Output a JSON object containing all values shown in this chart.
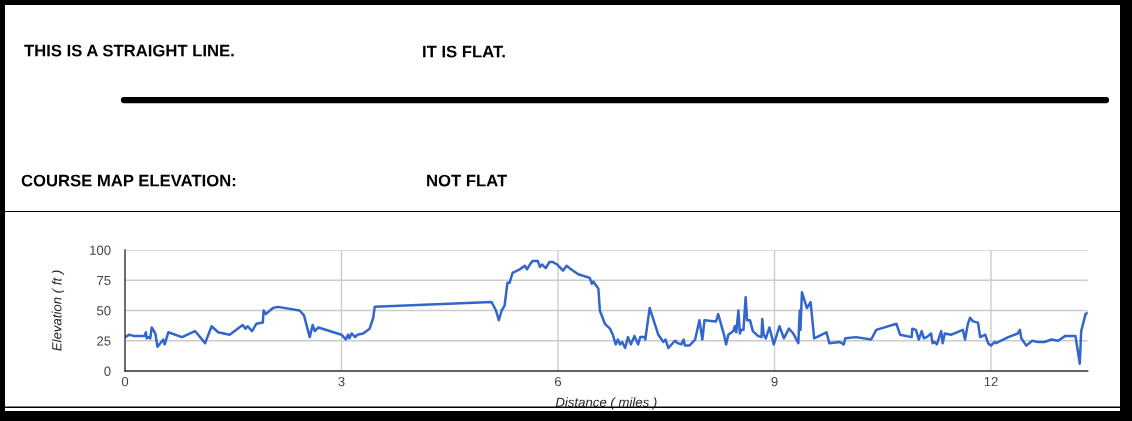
{
  "chart_data": [
    {
      "type": "other",
      "title": "THIS IS A STRAIGHT LINE.",
      "subtitle": "IT IS FLAT."
    },
    {
      "type": "line",
      "title": "COURSE MAP ELEVATION:",
      "subtitle": "NOT FLAT",
      "xlabel": "Distance ( miles )",
      "ylabel": "Elevation ( ft )",
      "x": [
        0.0,
        0.06,
        0.12,
        0.27,
        0.29,
        0.3,
        0.32,
        0.35,
        0.37,
        0.42,
        0.45,
        0.49,
        0.53,
        0.55,
        0.6,
        0.79,
        0.97,
        1.11,
        1.2,
        1.29,
        1.45,
        1.63,
        1.67,
        1.7,
        1.76,
        1.82,
        1.91,
        1.92,
        1.95,
        2.05,
        2.12,
        2.42,
        2.48,
        2.56,
        2.6,
        2.63,
        2.68,
        3.0,
        3.06,
        3.09,
        3.11,
        3.14,
        3.19,
        3.22,
        3.3,
        3.39,
        3.44,
        3.46,
        5.08,
        5.14,
        5.18,
        5.22,
        5.26,
        5.3,
        5.33,
        5.37,
        5.47,
        5.54,
        5.57,
        5.61,
        5.65,
        5.72,
        5.75,
        5.78,
        5.83,
        5.88,
        5.93,
        5.99,
        6.07,
        6.12,
        6.16,
        6.28,
        6.44,
        6.47,
        6.49,
        6.56,
        6.58,
        6.65,
        6.72,
        6.76,
        6.8,
        6.83,
        6.86,
        6.89,
        6.93,
        6.97,
        7.01,
        7.06,
        7.11,
        7.14,
        7.2,
        7.21,
        7.27,
        7.39,
        7.46,
        7.49,
        7.53,
        7.62,
        7.66,
        7.71,
        7.74,
        7.76,
        7.82,
        7.9,
        7.96,
        8.0,
        8.03,
        8.19,
        8.22,
        8.3,
        8.33,
        8.36,
        8.43,
        8.45,
        8.47,
        8.5,
        8.52,
        8.54,
        8.57,
        8.6,
        8.62,
        8.66,
        8.7,
        8.77,
        8.82,
        8.83,
        8.85,
        8.88,
        8.93,
        8.99,
        9.07,
        9.13,
        9.2,
        9.26,
        9.33,
        9.35,
        9.36,
        9.38,
        9.45,
        9.5,
        9.55,
        9.72,
        9.76,
        9.9,
        9.96,
        9.98,
        10.13,
        10.34,
        10.41,
        10.69,
        10.74,
        10.9,
        10.91,
        10.96,
        11.0,
        11.04,
        11.07,
        11.11,
        11.17,
        11.19,
        11.22,
        11.25,
        11.31,
        11.33,
        11.36,
        11.45,
        11.61,
        11.64,
        11.68,
        11.71,
        11.75,
        11.82,
        11.85,
        11.92,
        11.96,
        12.0,
        12.05,
        12.07,
        12.24,
        12.37,
        12.4,
        12.42,
        12.49,
        12.57,
        12.65,
        12.74,
        12.84,
        12.93,
        13.03,
        13.17,
        13.23,
        13.25,
        13.31,
        13.34
      ],
      "series": [
        {
          "color": "#3366cc",
          "values": [
            28,
            30,
            29,
            29,
            32,
            27,
            28,
            27,
            36,
            31,
            20,
            23,
            26,
            22,
            32,
            28,
            33,
            23,
            37,
            32,
            30,
            38,
            35,
            37,
            33,
            39,
            40,
            50,
            47,
            52,
            53,
            50,
            46,
            28,
            38,
            33,
            36,
            30,
            26,
            30,
            27,
            31,
            28,
            30,
            31,
            35,
            44,
            53,
            57,
            50,
            42,
            50,
            54,
            73,
            73,
            81,
            84,
            87,
            84,
            88,
            91,
            91,
            86,
            88,
            85,
            90,
            90,
            88,
            83,
            87,
            85,
            80,
            77,
            72,
            74,
            68,
            50,
            39,
            35,
            30,
            22,
            26,
            22,
            24,
            19,
            28,
            22,
            29,
            22,
            28,
            28,
            26,
            52,
            30,
            24,
            26,
            19,
            25,
            23,
            22,
            26,
            21,
            21,
            26,
            42,
            26,
            42,
            41,
            47,
            30,
            22,
            30,
            33,
            37,
            32,
            50,
            31,
            34,
            34,
            61,
            42,
            42,
            33,
            29,
            28,
            43,
            30,
            27,
            36,
            22,
            37,
            27,
            35,
            31,
            23,
            50,
            34,
            65,
            52,
            57,
            27,
            32,
            23,
            24,
            22,
            27,
            28,
            26,
            34,
            39,
            30,
            28,
            35,
            34,
            26,
            33,
            27,
            28,
            31,
            23,
            24,
            22,
            33,
            23,
            31,
            30,
            34,
            26,
            39,
            44,
            41,
            40,
            28,
            30,
            23,
            21,
            24,
            23,
            28,
            31,
            34,
            27,
            21,
            25,
            24,
            24,
            26,
            25,
            29,
            29,
            6,
            33,
            47,
            48
          ]
        }
      ],
      "xlim": [
        0,
        13.34
      ],
      "ylim": [
        0,
        100
      ],
      "xticks": [
        0,
        3,
        6,
        9,
        12
      ],
      "yticks": [
        0,
        25,
        50,
        75,
        100
      ],
      "grid": true
    }
  ]
}
